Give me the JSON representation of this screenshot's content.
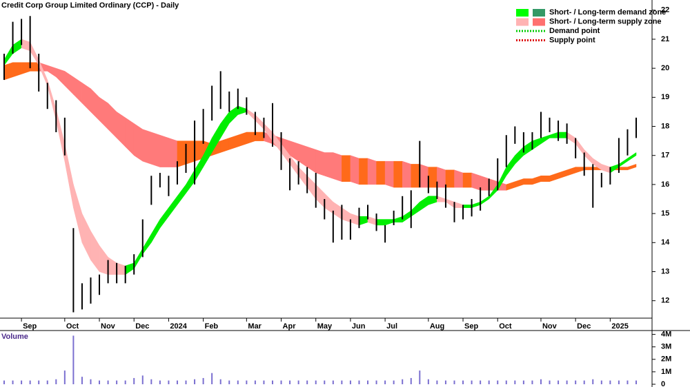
{
  "chart_data": {
    "type": "range-bar",
    "title": "Credit Corp Group Limited Ordinary (CCP) - Daily",
    "volume_title": "Volume",
    "categories": [
      null,
      null,
      "Sep",
      null,
      null,
      null,
      null,
      "Oct",
      null,
      null,
      null,
      "Nov",
      null,
      null,
      null,
      "Dec",
      null,
      null,
      null,
      "2024",
      null,
      null,
      null,
      "Feb",
      null,
      null,
      null,
      null,
      "Mar",
      null,
      null,
      null,
      "Apr",
      null,
      null,
      null,
      "May",
      null,
      null,
      null,
      "Jun",
      null,
      null,
      null,
      "Jul",
      null,
      null,
      null,
      null,
      "Aug",
      null,
      null,
      null,
      "Sep",
      null,
      null,
      null,
      "Oct",
      null,
      null,
      null,
      null,
      "Nov",
      null,
      null,
      null,
      "Dec",
      null,
      null,
      null,
      "2025",
      null,
      null,
      null
    ],
    "high": [
      20.5,
      21.6,
      21.7,
      21.8,
      20.5,
      19.5,
      18.9,
      18.3,
      14.5,
      12.6,
      12.8,
      12.9,
      13.4,
      13.3,
      13.2,
      13.6,
      14.8,
      16.3,
      16.4,
      16.3,
      16.8,
      17.4,
      18.2,
      18.6,
      19.4,
      19.9,
      19.2,
      19.3,
      19.0,
      18.5,
      18.3,
      18.8,
      17.8,
      16.9,
      16.8,
      16.6,
      16.4,
      15.5,
      15.1,
      15.3,
      14.8,
      15.2,
      15.3,
      15.0,
      14.6,
      15.1,
      15.6,
      15.8,
      17.5,
      16.3,
      16.1,
      16.0,
      15.4,
      15.3,
      15.5,
      15.9,
      16.2,
      16.9,
      17.7,
      18.0,
      17.8,
      17.8,
      18.5,
      18.3,
      18.2,
      18.1,
      17.6,
      17.1,
      16.7,
      16.4,
      16.6,
      17.6,
      17.9,
      18.3
    ],
    "low": [
      19.6,
      20.5,
      20.8,
      20.0,
      19.2,
      18.6,
      17.8,
      17.0,
      11.6,
      11.7,
      11.9,
      12.2,
      12.6,
      12.6,
      12.6,
      12.9,
      13.5,
      15.3,
      15.9,
      15.6,
      16.0,
      16.4,
      16.0,
      17.4,
      18.2,
      18.6,
      18.5,
      18.6,
      18.4,
      17.7,
      17.6,
      17.3,
      16.5,
      15.8,
      16.0,
      15.7,
      15.2,
      14.8,
      14.0,
      14.1,
      14.1,
      14.5,
      14.8,
      14.4,
      14.0,
      14.6,
      14.8,
      14.5,
      15.9,
      15.7,
      15.5,
      15.2,
      14.7,
      14.8,
      14.9,
      15.1,
      15.6,
      15.8,
      16.6,
      17.4,
      17.1,
      17.2,
      17.6,
      17.8,
      17.5,
      17.4,
      16.9,
      16.3,
      15.2,
      15.9,
      16.0,
      16.4,
      17.0,
      17.6
    ],
    "bar_color": "#000000",
    "short_upper": [
      20.3,
      20.8,
      21.0,
      20.9,
      20.3,
      19.6,
      18.6,
      17.4,
      16.0,
      15.0,
      14.4,
      13.9,
      13.5,
      13.3,
      13.2,
      13.3,
      13.8,
      14.3,
      14.8,
      15.2,
      15.6,
      16.0,
      16.5,
      17.0,
      17.6,
      18.1,
      18.5,
      18.7,
      18.6,
      18.4,
      18.1,
      17.8,
      17.4,
      17.0,
      16.6,
      16.3,
      16.0,
      15.7,
      15.4,
      15.2,
      15.0,
      14.9,
      14.9,
      14.8,
      14.8,
      14.8,
      14.9,
      15.1,
      15.4,
      15.6,
      15.6,
      15.5,
      15.4,
      15.3,
      15.3,
      15.4,
      15.6,
      16.0,
      16.6,
      17.0,
      17.3,
      17.5,
      17.6,
      17.7,
      17.8,
      17.8,
      17.6,
      17.2,
      16.9,
      16.7,
      16.6,
      16.7,
      16.9,
      17.1
    ],
    "short_lower": [
      20.1,
      20.5,
      20.7,
      20.6,
      20.1,
      19.4,
      18.2,
      16.8,
      15.2,
      14.0,
      13.4,
      13.0,
      12.9,
      12.9,
      12.9,
      13.1,
      13.6,
      14.0,
      14.5,
      14.9,
      15.3,
      15.7,
      16.1,
      16.6,
      17.1,
      17.6,
      18.1,
      18.4,
      18.5,
      18.2,
      17.9,
      17.5,
      17.1,
      16.7,
      16.3,
      15.9,
      15.5,
      15.2,
      15.0,
      14.8,
      14.7,
      14.6,
      14.7,
      14.6,
      14.6,
      14.7,
      14.7,
      14.9,
      15.1,
      15.3,
      15.4,
      15.4,
      15.2,
      15.2,
      15.2,
      15.3,
      15.5,
      15.8,
      16.3,
      16.7,
      17.0,
      17.2,
      17.4,
      17.6,
      17.6,
      17.6,
      17.4,
      17.0,
      16.7,
      16.5,
      16.4,
      16.6,
      16.8,
      17.0
    ],
    "long_upper": [
      20.1,
      20.2,
      20.2,
      20.2,
      20.2,
      20.1,
      20.0,
      19.9,
      19.7,
      19.5,
      19.3,
      19.0,
      18.8,
      18.5,
      18.3,
      18.1,
      17.9,
      17.8,
      17.7,
      17.6,
      17.5,
      17.5,
      17.5,
      17.5,
      17.4,
      17.5,
      17.6,
      17.7,
      17.8,
      17.8,
      17.8,
      17.7,
      17.6,
      17.5,
      17.4,
      17.3,
      17.2,
      17.1,
      17.1,
      17.0,
      17.0,
      16.9,
      16.9,
      16.8,
      16.8,
      16.8,
      16.8,
      16.7,
      16.7,
      16.6,
      16.6,
      16.5,
      16.5,
      16.4,
      16.4,
      16.3,
      16.2,
      16.1,
      16.0,
      16.1,
      16.2,
      16.2,
      16.3,
      16.3,
      16.4,
      16.5,
      16.6,
      16.6,
      16.6,
      16.6,
      16.6,
      16.6,
      16.6,
      16.7
    ],
    "long_lower": [
      19.6,
      19.7,
      19.8,
      19.9,
      19.9,
      19.9,
      19.7,
      19.4,
      19.1,
      18.8,
      18.5,
      18.2,
      17.9,
      17.6,
      17.3,
      17.0,
      16.8,
      16.7,
      16.6,
      16.6,
      16.6,
      16.7,
      16.8,
      16.9,
      17.0,
      17.1,
      17.2,
      17.3,
      17.4,
      17.5,
      17.5,
      17.4,
      17.2,
      17.0,
      16.8,
      16.6,
      16.4,
      16.3,
      16.2,
      16.1,
      16.1,
      16.0,
      16.0,
      16.0,
      16.0,
      15.9,
      15.9,
      15.9,
      15.9,
      15.9,
      15.9,
      15.9,
      15.9,
      15.9,
      15.9,
      15.8,
      15.8,
      15.8,
      15.8,
      15.9,
      16.0,
      16.0,
      16.1,
      16.1,
      16.2,
      16.3,
      16.4,
      16.5,
      16.5,
      16.5,
      16.5,
      16.5,
      16.5,
      16.6
    ],
    "short_colors": {
      "demand": "#00ee00",
      "supply": "#ffb3b3"
    },
    "long_colors": {
      "demand": "#ff6a1a",
      "supply": "#ff7a7a"
    },
    "volume": [
      0.3,
      0.3,
      0.3,
      0.3,
      0.3,
      0.3,
      0.4,
      1.1,
      3.9,
      0.6,
      0.4,
      0.3,
      0.3,
      0.3,
      0.3,
      0.5,
      0.7,
      0.4,
      0.3,
      0.3,
      0.3,
      0.3,
      0.4,
      0.5,
      0.9,
      0.4,
      0.3,
      0.3,
      0.3,
      0.3,
      0.3,
      0.3,
      0.3,
      0.3,
      0.3,
      0.3,
      0.3,
      0.3,
      0.3,
      0.3,
      0.3,
      0.3,
      0.3,
      0.3,
      0.3,
      0.3,
      0.4,
      0.5,
      1.1,
      0.4,
      0.3,
      0.3,
      0.3,
      0.3,
      0.3,
      0.3,
      0.3,
      0.3,
      0.3,
      0.3,
      0.3,
      0.3,
      0.4,
      0.3,
      0.3,
      0.3,
      0.3,
      0.3,
      0.4,
      0.3,
      0.3,
      0.3,
      0.3,
      0.3
    ],
    "volume_color": "#7a6fd0",
    "ylim": [
      11.4,
      22.35
    ],
    "yticks": [
      12,
      13,
      14,
      15,
      16,
      17,
      18,
      19,
      20,
      21,
      22
    ],
    "vlim": [
      0,
      4.2
    ],
    "vticks": [
      {
        "value": 4,
        "label": "4M"
      },
      {
        "value": 3,
        "label": "3M"
      },
      {
        "value": 2,
        "label": "2M"
      },
      {
        "value": 1,
        "label": "1M"
      },
      0
    ],
    "legend": [
      {
        "label": "Short- / Long-term demand zone",
        "colors": [
          "#00ff00",
          "#339966"
        ]
      },
      {
        "label": "Short- / Long-term supply zone",
        "colors": [
          "#ffb3b3",
          "#ff7070"
        ]
      },
      {
        "label": "Demand point",
        "color": "#00cc00"
      },
      {
        "label": "Supply point",
        "color": "#dd0000"
      }
    ]
  }
}
